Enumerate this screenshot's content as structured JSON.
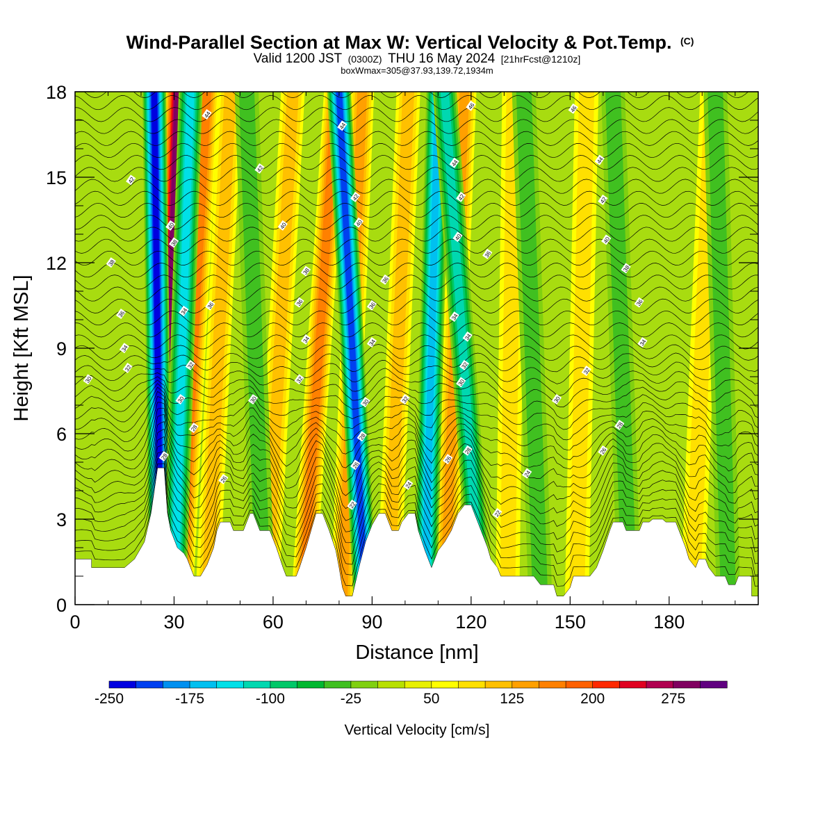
{
  "header": {
    "title": "Wind-Parallel Section at Max W: Vertical Velocity & Pot.Temp.",
    "copyright": "(C)",
    "valid_prefix": "Valid 1200 JST",
    "valid_utc": "(0300Z)",
    "valid_date": "THU 16 May 2024",
    "forecast": "[21hrFcst@1210z]",
    "box_info": "boxWmax=305@37.93,139.72,1934m"
  },
  "colors": {
    "terrain_fill": "#ffffff",
    "contour_line": "#000000",
    "scale": [
      "#0000e0",
      "#0040f0",
      "#0090f0",
      "#00c0f0",
      "#00e0e8",
      "#00d8b0",
      "#00c868",
      "#00b830",
      "#40c020",
      "#80d010",
      "#b8e000",
      "#e8f000",
      "#ffff00",
      "#ffe000",
      "#ffc000",
      "#ffa000",
      "#ff8000",
      "#ff6000",
      "#ff2800",
      "#e00020",
      "#b00050",
      "#800060",
      "#600080"
    ]
  },
  "chart_data": {
    "type": "heatmap",
    "title": "Wind-Parallel Section at Max W: Vertical Velocity & Pot.Temp.",
    "xlabel": "Distance [nm]",
    "ylabel": "Height [Kft MSL]",
    "xlim": [
      0,
      207
    ],
    "ylim": [
      0,
      18
    ],
    "x_ticks": [
      0,
      30,
      60,
      90,
      120,
      150,
      180
    ],
    "y_ticks": [
      0,
      3,
      6,
      9,
      12,
      15,
      18
    ],
    "colorbar": {
      "label": "Vertical Velocity [cm/s]",
      "tick_values": [
        -250,
        -175,
        -100,
        -25,
        50,
        125,
        200,
        275
      ],
      "tick_labels": [
        "-250",
        "-175",
        "-100",
        "-25",
        "50",
        "125",
        "200",
        "275"
      ],
      "min": -250,
      "max": 325,
      "step": 25
    },
    "terrain_profile": [
      [
        0,
        1.6
      ],
      [
        5,
        1.6
      ],
      [
        5,
        1.3
      ],
      [
        15,
        1.3
      ],
      [
        18,
        1.6
      ],
      [
        21,
        2.2
      ],
      [
        23,
        3.2
      ],
      [
        24,
        4.0
      ],
      [
        25,
        4.8
      ],
      [
        27,
        4.8
      ],
      [
        28,
        3.2
      ],
      [
        29,
        2.6
      ],
      [
        31,
        2.0
      ],
      [
        33,
        1.8
      ],
      [
        34,
        1.6
      ],
      [
        35,
        1.3
      ],
      [
        36,
        1.0
      ],
      [
        38,
        1.0
      ],
      [
        40,
        1.4
      ],
      [
        42,
        2.0
      ],
      [
        43,
        2.6
      ],
      [
        44,
        2.9
      ],
      [
        47,
        2.9
      ],
      [
        48,
        2.6
      ],
      [
        51,
        2.6
      ],
      [
        53,
        3.2
      ],
      [
        54,
        3.2
      ],
      [
        56,
        2.6
      ],
      [
        59,
        2.6
      ],
      [
        61,
        2.0
      ],
      [
        63,
        1.3
      ],
      [
        64,
        1.0
      ],
      [
        67,
        1.0
      ],
      [
        68,
        1.3
      ],
      [
        70,
        2.0
      ],
      [
        72,
        2.8
      ],
      [
        73,
        3.2
      ],
      [
        75,
        3.2
      ],
      [
        77,
        2.6
      ],
      [
        79,
        1.9
      ],
      [
        80,
        1.3
      ],
      [
        81,
        0.6
      ],
      [
        82,
        0.3
      ],
      [
        84,
        0.3
      ],
      [
        86,
        1.3
      ],
      [
        88,
        2.2
      ],
      [
        90,
        2.8
      ],
      [
        92,
        3.2
      ],
      [
        94,
        3.2
      ],
      [
        96,
        2.6
      ],
      [
        98,
        2.6
      ],
      [
        99,
        2.9
      ],
      [
        101,
        3.2
      ],
      [
        103,
        3.2
      ],
      [
        104,
        2.6
      ],
      [
        106,
        1.9
      ],
      [
        108,
        1.3
      ],
      [
        109,
        1.6
      ],
      [
        110,
        1.9
      ],
      [
        112,
        2.2
      ],
      [
        114,
        2.6
      ],
      [
        116,
        3.2
      ],
      [
        118,
        3.5
      ],
      [
        120,
        3.5
      ],
      [
        121,
        3.2
      ],
      [
        123,
        2.6
      ],
      [
        125,
        2.0
      ],
      [
        126,
        1.6
      ],
      [
        128,
        1.3
      ],
      [
        129,
        1.0
      ],
      [
        139,
        1.0
      ],
      [
        141,
        0.7
      ],
      [
        145,
        0.7
      ],
      [
        146,
        0.3
      ],
      [
        148,
        0.3
      ],
      [
        150,
        0.6
      ],
      [
        151,
        1.0
      ],
      [
        156,
        1.0
      ],
      [
        158,
        1.3
      ],
      [
        160,
        1.9
      ],
      [
        162,
        2.6
      ],
      [
        163,
        2.9
      ],
      [
        166,
        2.9
      ],
      [
        167,
        2.6
      ],
      [
        171,
        2.6
      ],
      [
        172,
        2.9
      ],
      [
        174,
        2.9
      ],
      [
        175,
        3.0
      ],
      [
        178,
        3.0
      ],
      [
        179,
        2.9
      ],
      [
        182,
        2.9
      ],
      [
        183,
        2.6
      ],
      [
        185,
        2.0
      ],
      [
        186,
        1.6
      ],
      [
        188,
        1.3
      ],
      [
        189,
        1.6
      ],
      [
        191,
        1.6
      ],
      [
        192,
        1.3
      ],
      [
        194,
        1.0
      ],
      [
        197,
        1.0
      ],
      [
        198,
        0.7
      ],
      [
        200,
        0.7
      ],
      [
        201,
        1.0
      ],
      [
        205,
        1.0
      ],
      [
        205,
        0.3
      ],
      [
        207,
        0.3
      ]
    ],
    "updraft_bands": [
      {
        "x_base": 26,
        "x_top": 31,
        "w_max": 275
      },
      {
        "x_base": 32,
        "x_top": 40,
        "w_max": 150
      },
      {
        "x_base": 40,
        "x_top": 47,
        "w_max": 100
      },
      {
        "x_base": 58,
        "x_top": 66,
        "w_max": 100
      },
      {
        "x_base": 69,
        "x_top": 79,
        "w_max": 150
      },
      {
        "x_base": 81,
        "x_top": 87,
        "w_max": 125
      },
      {
        "x_base": 95,
        "x_top": 101,
        "w_max": 100
      },
      {
        "x_base": 112,
        "x_top": 118,
        "w_max": 125
      },
      {
        "x_base": 131,
        "x_top": 133,
        "w_max": 75
      },
      {
        "x_base": 152,
        "x_top": 155,
        "w_max": 75
      },
      {
        "x_base": 187,
        "x_top": 193,
        "w_max": 75
      }
    ],
    "downdraft_bands": [
      {
        "x_base": 26,
        "x_top": 24,
        "w_min": -250
      },
      {
        "x_base": 30,
        "x_top": 35,
        "w_min": -150
      },
      {
        "x_base": 88,
        "x_top": 80,
        "w_min": -225
      },
      {
        "x_base": 106,
        "x_top": 110,
        "w_min": -175
      },
      {
        "x_base": 123,
        "x_top": 112,
        "w_min": -125
      },
      {
        "x_base": 57,
        "x_top": 52,
        "w_min": -50
      },
      {
        "x_base": 141,
        "x_top": 136,
        "w_min": -50
      },
      {
        "x_base": 168,
        "x_top": 163,
        "w_min": -50
      },
      {
        "x_base": 198,
        "x_top": 194,
        "w_min": -50
      }
    ],
    "isentrope_labels": [
      {
        "x": 40,
        "y": 17.2,
        "value": "44"
      },
      {
        "x": 81,
        "y": 16.8,
        "value": "44"
      },
      {
        "x": 120,
        "y": 17.5,
        "value": "46"
      },
      {
        "x": 151,
        "y": 17.4,
        "value": "46"
      },
      {
        "x": 115,
        "y": 15.5,
        "value": "44"
      },
      {
        "x": 159,
        "y": 15.6,
        "value": "44"
      },
      {
        "x": 17,
        "y": 14.9,
        "value": "42"
      },
      {
        "x": 56,
        "y": 15.3,
        "value": "42"
      },
      {
        "x": 85,
        "y": 14.3,
        "value": "42"
      },
      {
        "x": 117,
        "y": 14.3,
        "value": "42"
      },
      {
        "x": 160,
        "y": 14.2,
        "value": "42"
      },
      {
        "x": 29,
        "y": 13.3,
        "value": "40"
      },
      {
        "x": 63,
        "y": 13.3,
        "value": "40"
      },
      {
        "x": 86,
        "y": 13.4,
        "value": "40"
      },
      {
        "x": 116,
        "y": 12.9,
        "value": "40"
      },
      {
        "x": 161,
        "y": 12.8,
        "value": "40"
      },
      {
        "x": 30,
        "y": 12.7,
        "value": "38"
      },
      {
        "x": 11,
        "y": 12.0,
        "value": "38"
      },
      {
        "x": 70,
        "y": 11.7,
        "value": "38"
      },
      {
        "x": 125,
        "y": 12.3,
        "value": "36"
      },
      {
        "x": 167,
        "y": 11.8,
        "value": "38"
      },
      {
        "x": 94,
        "y": 11.4,
        "value": "36"
      },
      {
        "x": 68,
        "y": 10.6,
        "value": "36"
      },
      {
        "x": 41,
        "y": 10.5,
        "value": "36"
      },
      {
        "x": 90,
        "y": 10.5,
        "value": "36"
      },
      {
        "x": 14,
        "y": 10.2,
        "value": "36"
      },
      {
        "x": 33,
        "y": 10.3,
        "value": "34"
      },
      {
        "x": 115,
        "y": 10.1,
        "value": "34"
      },
      {
        "x": 171,
        "y": 10.6,
        "value": "36"
      },
      {
        "x": 15,
        "y": 9.0,
        "value": "34"
      },
      {
        "x": 70,
        "y": 9.3,
        "value": "34"
      },
      {
        "x": 90,
        "y": 9.2,
        "value": "34"
      },
      {
        "x": 119,
        "y": 9.4,
        "value": "34"
      },
      {
        "x": 172,
        "y": 9.2,
        "value": "34"
      },
      {
        "x": 16,
        "y": 8.3,
        "value": "32"
      },
      {
        "x": 35,
        "y": 8.4,
        "value": "32"
      },
      {
        "x": 118,
        "y": 8.4,
        "value": "32"
      },
      {
        "x": 155,
        "y": 8.2,
        "value": "32"
      },
      {
        "x": 68,
        "y": 7.9,
        "value": "32"
      },
      {
        "x": 4,
        "y": 7.9,
        "value": "30"
      },
      {
        "x": 32,
        "y": 7.2,
        "value": "30"
      },
      {
        "x": 54,
        "y": 7.2,
        "value": "30"
      },
      {
        "x": 88,
        "y": 7.1,
        "value": "30"
      },
      {
        "x": 100,
        "y": 7.2,
        "value": "32"
      },
      {
        "x": 117,
        "y": 7.8,
        "value": "30"
      },
      {
        "x": 146,
        "y": 7.2,
        "value": "30"
      },
      {
        "x": 36,
        "y": 6.2,
        "value": "28"
      },
      {
        "x": 87,
        "y": 5.9,
        "value": "28"
      },
      {
        "x": 165,
        "y": 6.3,
        "value": "28"
      },
      {
        "x": 27,
        "y": 5.2,
        "value": "28"
      },
      {
        "x": 113,
        "y": 5.1,
        "value": "26"
      },
      {
        "x": 119,
        "y": 5.4,
        "value": "28"
      },
      {
        "x": 85,
        "y": 4.9,
        "value": "26"
      },
      {
        "x": 160,
        "y": 5.4,
        "value": "26"
      },
      {
        "x": 45,
        "y": 4.4,
        "value": "26"
      },
      {
        "x": 101,
        "y": 4.2,
        "value": "24"
      },
      {
        "x": 137,
        "y": 4.6,
        "value": "24"
      },
      {
        "x": 84,
        "y": 3.5,
        "value": "22"
      },
      {
        "x": 128,
        "y": 3.2,
        "value": "22"
      }
    ]
  }
}
